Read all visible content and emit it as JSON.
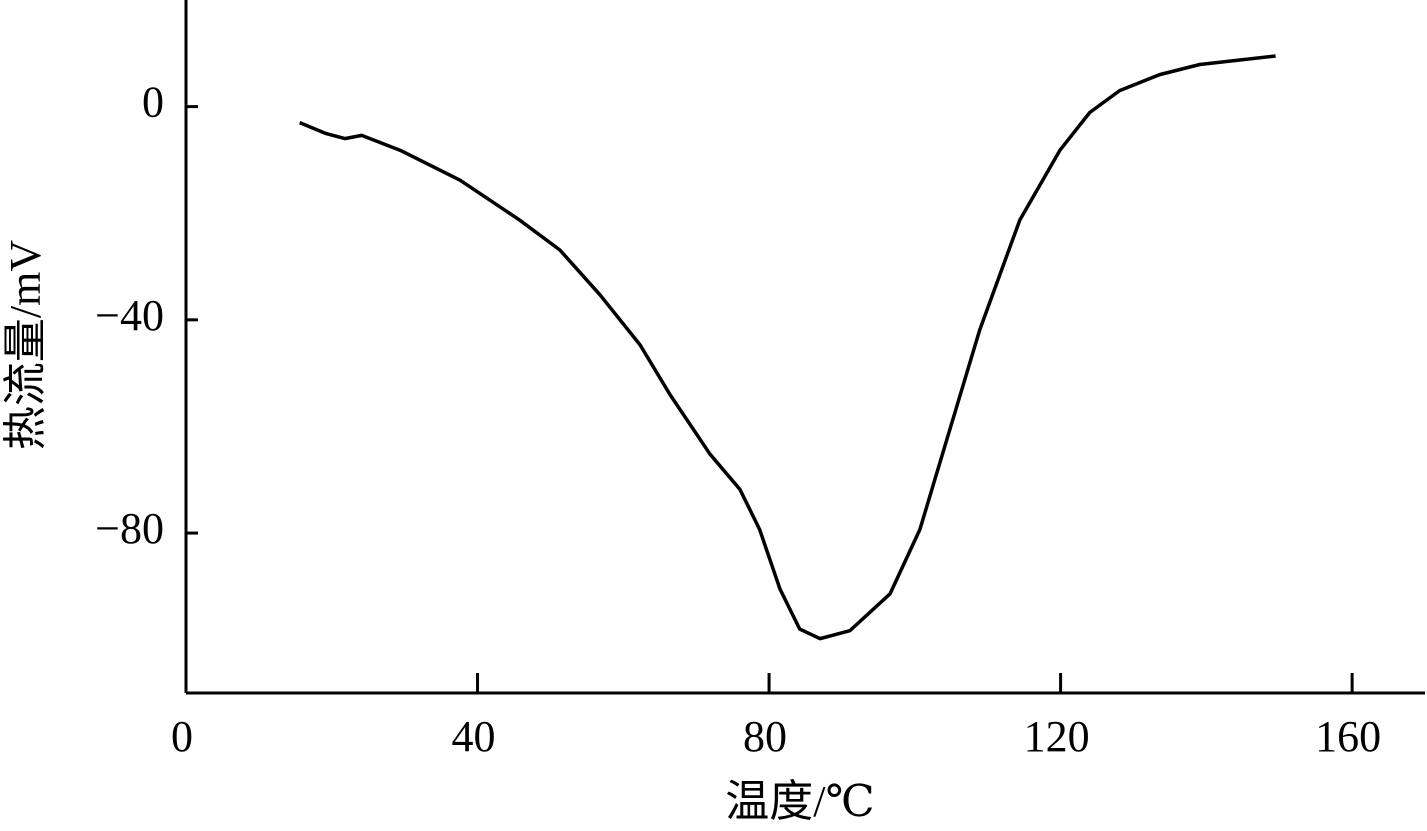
{
  "chart_data": {
    "type": "line",
    "x_label": "温度/℃",
    "y_label": "热流量/mV",
    "x": [
      15.6,
      19.1,
      21.8,
      24.1,
      29.4,
      37.6,
      45.8,
      51.3,
      56.8,
      62.3,
      66.4,
      71.9,
      76,
      78.7,
      81.5,
      84.2,
      87,
      91.1,
      96.6,
      100.7,
      104.8,
      108.9,
      114.4,
      119.9,
      124,
      128.1,
      133.6,
      139.1,
      149.5
    ],
    "series": [
      {
        "name": "热流量",
        "color": "#000000",
        "values": [
          -3,
          -5,
          -6,
          -5.4,
          -8.2,
          -13.8,
          -21.3,
          -26.9,
          -35.3,
          -44.7,
          -54,
          -65.2,
          -71.8,
          -79.3,
          -90.5,
          -98,
          -99.8,
          -98.3,
          -91.4,
          -79.3,
          -60.6,
          -41.9,
          -21.3,
          -8.2,
          -1.1,
          3,
          6,
          7.9,
          9.5
        ]
      }
    ],
    "xlim": [
      0,
      170
    ],
    "xticks": [
      0,
      40,
      80,
      120,
      160
    ],
    "ylim": [
      -110,
      20
    ],
    "yticks": [
      {
        "value": -80,
        "label": "−80"
      },
      {
        "value": -40,
        "label": "−40"
      },
      0
    ],
    "grid": false
  }
}
